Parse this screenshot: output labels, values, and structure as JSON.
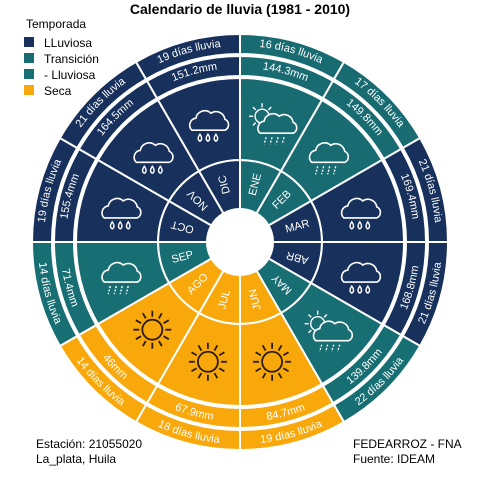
{
  "chart_data": {
    "type": "radial-calendar",
    "title": "Calendario de lluvia (1981 - 2010)",
    "legend": {
      "title": "Temporada",
      "placement": "top-left",
      "items": [
        {
          "key": "lluviosa",
          "label": "LLuviosa",
          "color": "#17305c"
        },
        {
          "key": "transicion",
          "label": "Transición",
          "color": "#196b72"
        },
        {
          "key": "menos",
          "label": "- Lluviosa",
          "color": "#186f73"
        },
        {
          "key": "seca",
          "label": "Seca",
          "color": "#f8a80a"
        }
      ]
    },
    "months": [
      {
        "name": "ENE",
        "season": "transicion",
        "precip": "144.3mm",
        "days": "16 días lluvia",
        "icon": "sun-cloud-icon"
      },
      {
        "name": "FEB",
        "season": "transicion",
        "precip": "149.8mm",
        "days": "17 días lluvia",
        "icon": "cloud-rain-icon"
      },
      {
        "name": "MAR",
        "season": "lluviosa",
        "precip": "169.4mm",
        "days": "21 días lluvia",
        "icon": "cloud-drops-icon"
      },
      {
        "name": "ABR",
        "season": "lluviosa",
        "precip": "168.8mm",
        "days": "21 días lluvia",
        "icon": "cloud-drops-icon"
      },
      {
        "name": "MAY",
        "season": "menos",
        "precip": "139.8mm",
        "days": "22 días lluvia",
        "icon": "sun-cloud-icon"
      },
      {
        "name": "JUN",
        "season": "seca",
        "precip": "84.7mm",
        "days": "19 días lluvia",
        "icon": "sun-icon"
      },
      {
        "name": "JUL",
        "season": "seca",
        "precip": "67.9mm",
        "days": "18 días lluvia",
        "icon": "sun-icon"
      },
      {
        "name": "AGO",
        "season": "seca",
        "precip": "46mm",
        "days": "14 días lluvia",
        "icon": "sun-icon"
      },
      {
        "name": "SEP",
        "season": "menos",
        "precip": "71.4mm",
        "days": "14 días lluvia",
        "icon": "cloud-rain-icon"
      },
      {
        "name": "OCT",
        "season": "lluviosa",
        "precip": "155.4mm",
        "days": "19 días lluvia",
        "icon": "cloud-drops-icon"
      },
      {
        "name": "NOV",
        "season": "lluviosa",
        "precip": "164.5mm",
        "days": "21 días lluvia",
        "icon": "cloud-drops-icon"
      },
      {
        "name": "DIC",
        "season": "lluviosa",
        "precip": "151.2mm",
        "days": "19 días lluvia",
        "icon": "cloud-drops-icon"
      }
    ]
  },
  "footer": {
    "station": "Estación: 21055020",
    "location": "La_plata, Huila",
    "org": "FEDEARROZ - FNA",
    "source": "Fuente: IDEAM"
  }
}
